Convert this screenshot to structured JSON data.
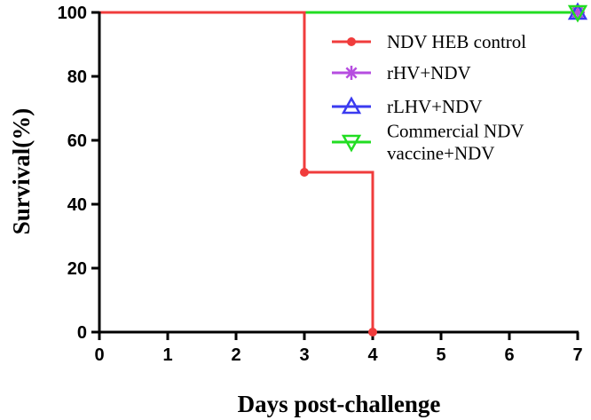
{
  "chart_data": {
    "type": "line",
    "step": true,
    "xlabel": "Days post-challenge",
    "ylabel": "Survival(%)",
    "xlim": [
      0,
      7
    ],
    "ylim": [
      0,
      100
    ],
    "xticks": [
      "0",
      "1",
      "2",
      "3",
      "4",
      "5",
      "6",
      "7"
    ],
    "yticks": [
      "0",
      "20",
      "40",
      "60",
      "80",
      "100"
    ],
    "grid": false,
    "legend_position": "top-right",
    "series": [
      {
        "name": "NDV HEB control",
        "color": "#f03c3c",
        "marker": "circle",
        "points": [
          [
            0,
            100
          ],
          [
            3,
            50
          ],
          [
            4,
            0
          ]
        ]
      },
      {
        "name": "rHV+NDV",
        "color": "#b64de0",
        "marker": "asterisk",
        "points": [
          [
            0,
            100
          ],
          [
            7,
            100
          ]
        ]
      },
      {
        "name": "rLHV+NDV",
        "color": "#3b3bf0",
        "marker": "triangle-up",
        "points": [
          [
            0,
            100
          ],
          [
            7,
            100
          ]
        ]
      },
      {
        "name": "Commercial NDV vaccine+NDV",
        "legend_lines": [
          "Commercial NDV",
          "vaccine+NDV"
        ],
        "color": "#22dd22",
        "marker": "triangle-down",
        "points": [
          [
            0,
            100
          ],
          [
            7,
            100
          ]
        ]
      }
    ]
  }
}
